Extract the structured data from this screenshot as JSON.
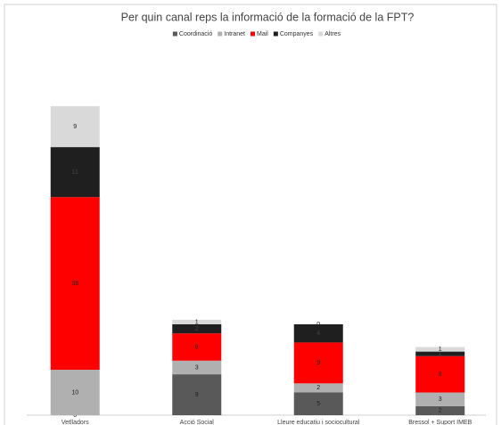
{
  "chart_data": {
    "type": "stacked_bar",
    "title": "Per quin canal reps la informació de la formació de la FPT?",
    "categories": [
      "Vetlladors",
      "Acció Social",
      "Lleure educatiu i sociocultural",
      "Bressol + Suport IMEB"
    ],
    "series": [
      {
        "name": "Coordinació",
        "color": "#595959",
        "values": [
          0,
          9,
          5,
          2
        ]
      },
      {
        "name": "Intranet",
        "color": "#b0b0b0",
        "values": [
          10,
          3,
          2,
          3
        ]
      },
      {
        "name": "Mail",
        "color": "#ff0000",
        "values": [
          38,
          6,
          9,
          8
        ]
      },
      {
        "name": "Companyes",
        "color": "#1f1f1f",
        "values": [
          11,
          2,
          4,
          1
        ]
      },
      {
        "name": "Altres",
        "color": "#d9d9d9",
        "values": [
          9,
          1,
          0,
          1
        ]
      }
    ],
    "ylim": [
      0,
      80
    ],
    "legend": "top"
  }
}
